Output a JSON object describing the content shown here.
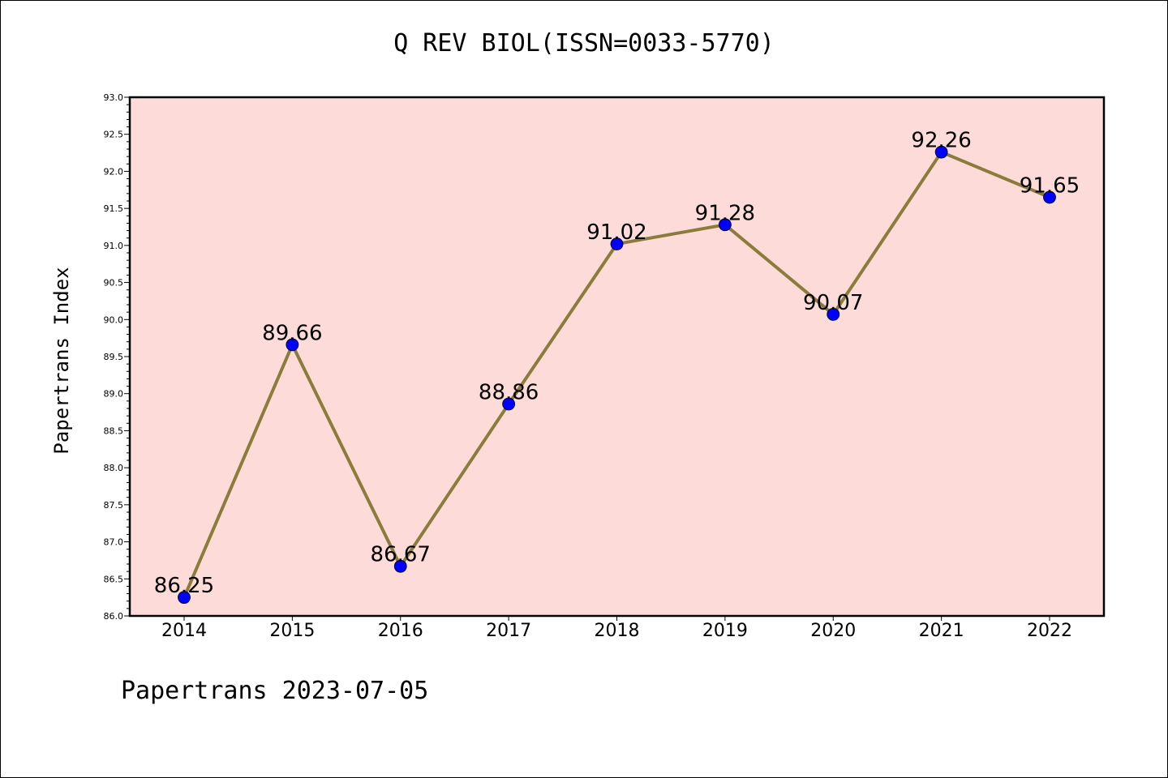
{
  "header": {
    "title": "Q REV BIOL(ISSN=0033-5770)"
  },
  "footer": {
    "text": "Papertrans 2023-07-05"
  },
  "chart_data": {
    "type": "line",
    "title": "Q REV BIOL(ISSN=0033-5770)",
    "xlabel": "",
    "ylabel": "Papertrans Index",
    "x": [
      "2014",
      "2015",
      "2016",
      "2017",
      "2018",
      "2019",
      "2020",
      "2021",
      "2022"
    ],
    "series": [
      {
        "values": [
          86.25,
          89.66,
          86.67,
          88.86,
          91.02,
          91.28,
          90.07,
          92.26,
          91.65
        ],
        "labels": [
          "86.25",
          "89.66",
          "86.67",
          "88.86",
          "91.02",
          "91.28",
          "90.07",
          "92.26",
          "91.65"
        ]
      }
    ],
    "ylim": [
      86.0,
      93.0
    ],
    "yticks": [
      "86.0",
      "86.5",
      "87.0",
      "87.5",
      "88.0",
      "88.5",
      "89.0",
      "89.5",
      "90.0",
      "90.5",
      "91.0",
      "91.5",
      "92.0",
      "92.5",
      "93.0"
    ],
    "grid": false,
    "legend": "none",
    "colors": {
      "plot_background": "#fddbd8",
      "line": "#8b7c3c",
      "marker": "#0000ff",
      "axis": "#000000"
    }
  }
}
